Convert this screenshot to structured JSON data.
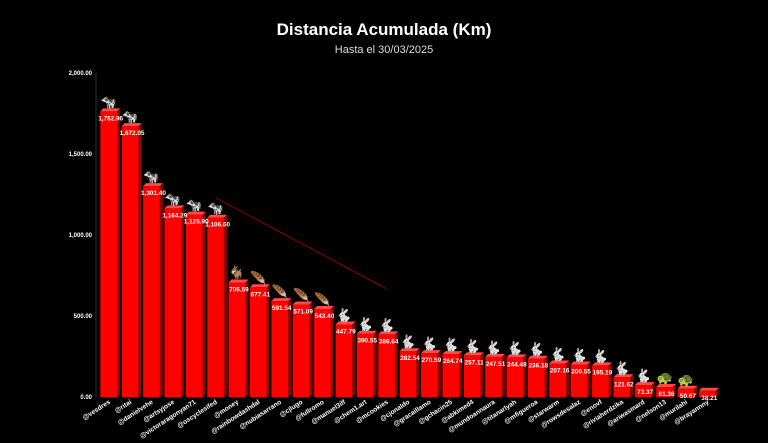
{
  "chart_data": {
    "type": "bar",
    "title": "Distancia Acumulada (Km)",
    "subtitle": "Hasta el 30/03/2025",
    "ylim": [
      0,
      2000
    ],
    "yticks": [
      "0.00",
      "500.00",
      "1,000.00",
      "1,500.00",
      "2,000.00"
    ],
    "ytick_values": [
      0,
      500,
      1000,
      1500,
      2000
    ],
    "grid": false,
    "trendline": true,
    "bar_color": "#ff0000",
    "bar_dark_color": "#8b0000",
    "categories": [
      "@vesdres",
      "@ritai",
      "@danielvehe",
      "@artsyjose",
      "@victoraragonyan71",
      "@oscyclesifed",
      "@money",
      "@rainbowdashdal",
      "@nubiasarrano",
      "@cjlugo",
      "@fullromo",
      "@manuel3ilf",
      "@chem1.art",
      "@mcookies",
      "@cjonaldo",
      "@gracaillamo",
      "@gchacin25",
      "@abkimed4",
      "@mundoannaura",
      "@titanarlyah",
      "@mfigueroa",
      "@starwarm",
      "@rowsdesalaz",
      "@enovf",
      "@riviaherdzika",
      "@ariwasmard",
      "@nelson13",
      "@murilahi",
      "@brayannny"
    ],
    "values": [
      1762.96,
      1672.05,
      1301.4,
      1164.29,
      1125.9,
      1106.6,
      706.59,
      677.41,
      591.54,
      571.09,
      543.4,
      447.79,
      390.55,
      386.64,
      282.54,
      270.59,
      264.74,
      257.11,
      247.51,
      244.48,
      236.18,
      207.16,
      200.55,
      195.19,
      121.62,
      73.37,
      61.36,
      50.67,
      38.21
    ],
    "labels": [
      "1,762.96",
      "1,672.05",
      "1,301.40",
      "1,164.29",
      "1,125.90",
      "1,106.60",
      "706.59",
      "677.41",
      "591.54",
      "571.09",
      "543.40",
      "447.79",
      "390.55",
      "386.64",
      "282.54",
      "270.59",
      "264.74",
      "257.11",
      "247.51",
      "244.48",
      "236.18",
      "207.16",
      "200.55",
      "195.19",
      "121.62",
      "73.37",
      "61.36",
      "50.67",
      "38.21"
    ],
    "icons": [
      "cow-icon",
      "cow-icon",
      "cow-icon",
      "cow-icon",
      "cow-icon",
      "cow-icon",
      "goat-icon",
      "feather-icon",
      "feather-icon",
      "feather-icon",
      "feather-icon",
      "rabbit-icon",
      "rabbit-icon",
      "rabbit-icon",
      "rabbit-icon",
      "rabbit-icon",
      "rabbit-icon",
      "rabbit-icon",
      "rabbit-icon",
      "rabbit-icon",
      "rabbit-icon",
      "rabbit-icon",
      "rabbit-icon",
      "rabbit-icon",
      "rabbit-icon",
      "rabbit-icon",
      "turtle-icon",
      "turtle-icon",
      "none"
    ],
    "icon_glyphs": {
      "cow-icon": "🐄",
      "goat-icon": "🐐",
      "feather-icon": "🪶",
      "rabbit-icon": "🐇",
      "turtle-icon": "🐢",
      "none": ""
    }
  }
}
